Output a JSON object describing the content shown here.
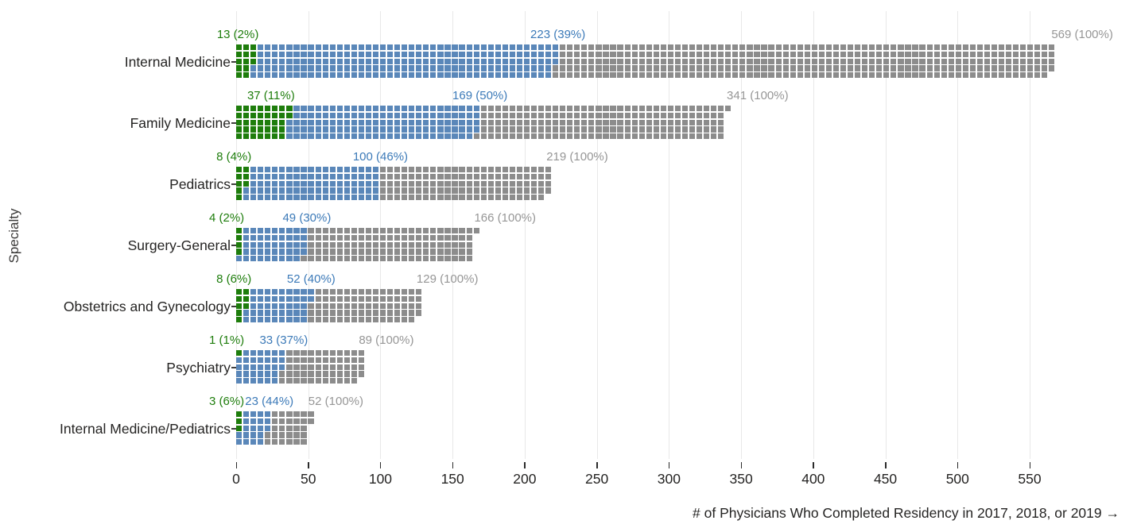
{
  "figure": {
    "y_axis_title": "Specialty",
    "x_axis_title": "# of Physicians Who Completed Residency in 2017, 2018, or 2019 →",
    "background_color": "#ffffff",
    "gridline_color": "#e8e8e8",
    "axis_text_color": "#252423"
  },
  "chart_data": {
    "type": "bar",
    "subtype": "waffle-unit-chart",
    "orientation": "horizontal",
    "units_per_column": 5,
    "title": "",
    "xlabel": "# of Physicians Who Completed Residency in 2017, 2018, or 2019 →",
    "ylabel": "Specialty",
    "xlim": [
      0,
      620
    ],
    "x_ticks": [
      0,
      50,
      100,
      150,
      200,
      250,
      300,
      350,
      400,
      450,
      500,
      550
    ],
    "grid": true,
    "legend": "none",
    "categories": [
      "Internal Medicine",
      "Family Medicine",
      "Pediatrics",
      "Surgery-General",
      "Obstetrics and Gynecology",
      "Psychiatry",
      "Internal Medicine/Pediatrics"
    ],
    "series": [
      {
        "name": "green",
        "square_color": "#1E7D0C",
        "label_color": "#1E7D0C",
        "cumulative_values": [
          13,
          37,
          8,
          4,
          8,
          1,
          3
        ],
        "labels": [
          "13 (2%)",
          "37 (11%)",
          "8 (4%)",
          "4 (2%)",
          "8 (6%)",
          "1 (1%)",
          "3 (6%)"
        ]
      },
      {
        "name": "blue",
        "square_color": "#5A87B9",
        "label_color": "#3C7AB8",
        "cumulative_values": [
          223,
          169,
          100,
          49,
          52,
          33,
          23
        ],
        "labels": [
          "223 (39%)",
          "169 (50%)",
          "100 (46%)",
          "49 (30%)",
          "52 (40%)",
          "33 (37%)",
          "23 (44%)"
        ]
      },
      {
        "name": "gray",
        "square_color": "#8C8C8C",
        "label_color": "#969696",
        "cumulative_values": [
          569,
          341,
          219,
          166,
          129,
          89,
          52
        ],
        "labels": [
          "569 (100%)",
          "341 (100%)",
          "219 (100%)",
          "166 (100%)",
          "129 (100%)",
          "89 (100%)",
          "52 (100%)"
        ]
      }
    ]
  }
}
